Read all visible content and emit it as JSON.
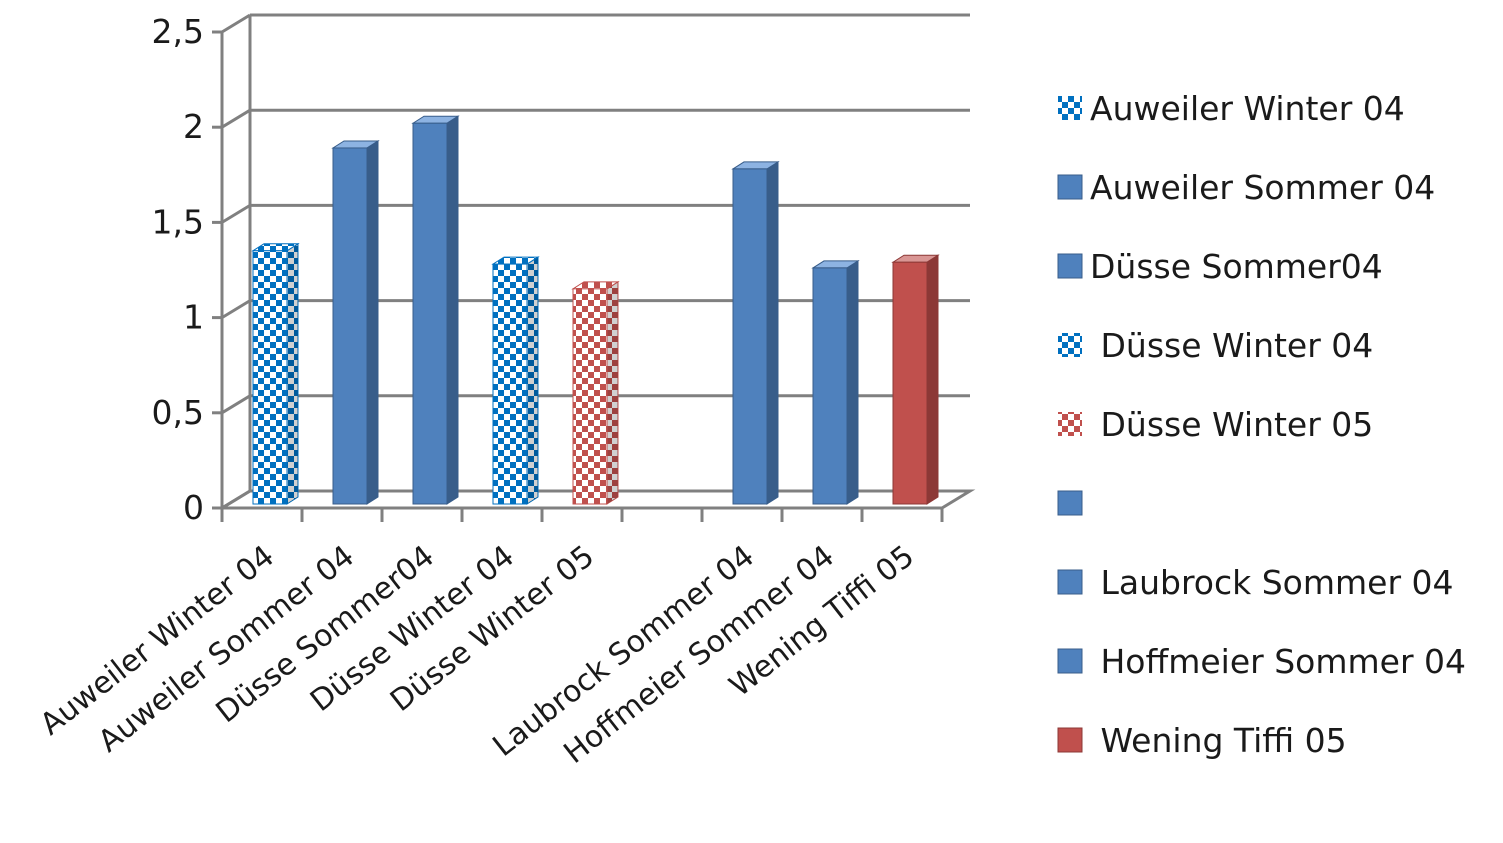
{
  "chart_data": {
    "type": "bar",
    "categories": [
      "Auweiler Winter 04",
      "Auweiler Sommer 04",
      "Düsse Sommer04",
      "Düsse Winter 04",
      "Düsse Winter 05",
      "",
      "Laubrock Sommer 04",
      "Hoffmeier Sommer 04",
      "Wening Tiffi 05"
    ],
    "values": [
      1.33,
      1.87,
      2.0,
      1.26,
      1.13,
      null,
      1.76,
      1.24,
      1.27
    ],
    "bar_styles": [
      "checker-blue",
      "solid-blue",
      "solid-blue",
      "checker-blue",
      "checker-red",
      "solid-blue",
      "solid-blue",
      "solid-blue",
      "solid-red"
    ],
    "y_ticks": [
      "0",
      "0,5",
      "1",
      "1,5",
      "2",
      "2,5"
    ],
    "ylim": [
      0,
      2.5
    ],
    "grid": true,
    "legend_position": "right",
    "legend": [
      {
        "label": "Auweiler Winter 04",
        "style": "checker-blue"
      },
      {
        "label": "Auweiler Sommer 04",
        "style": "solid-blue"
      },
      {
        "label": "Düsse Sommer04",
        "style": "solid-blue"
      },
      {
        "label": " Düsse Winter 04",
        "style": "checker-blue"
      },
      {
        "label": " Düsse Winter 05",
        "style": "checker-red"
      },
      {
        "label": "",
        "style": "solid-blue"
      },
      {
        "label": " Laubrock Sommer 04",
        "style": "solid-blue"
      },
      {
        "label": " Hoffmeier Sommer 04",
        "style": "solid-blue"
      },
      {
        "label": " Wening Tiffi 05",
        "style": "solid-red"
      }
    ],
    "colors": {
      "blue": "#4f81bd",
      "blue_dark": "#385d8a",
      "blue_checker": "#0070c0",
      "red": "#c0504d",
      "red_dark": "#8c3836",
      "grid": "#808080"
    }
  }
}
